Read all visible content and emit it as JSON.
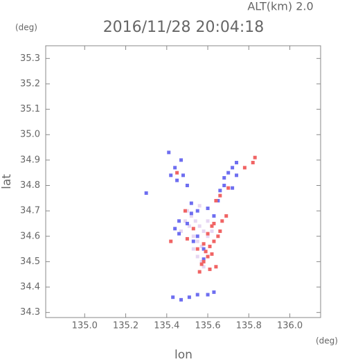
{
  "chart_data": {
    "type": "scatter",
    "title": "2016/11/28 20:04:18",
    "subtitle": "ALT(km) 2.0",
    "y_unit": "(deg)",
    "x_unit": "(deg)",
    "x_label": "lon",
    "y_label": "lat",
    "xlim": [
      134.81,
      136.15
    ],
    "ylim": [
      34.28,
      35.35
    ],
    "xticks": [
      {
        "value": 135,
        "label": "135.0"
      },
      135.2,
      135.4,
      135.6,
      135.8,
      {
        "value": 136,
        "label": "136.0"
      }
    ],
    "yticks": [
      34.3,
      34.4,
      34.5,
      34.6,
      34.7,
      34.8,
      34.9,
      {
        "value": 35,
        "label": "35.0"
      },
      35.1,
      35.2,
      35.3
    ],
    "series": [
      {
        "color": "#e6d6f2",
        "x": [
          135.5,
          135.52,
          135.54,
          135.56,
          135.58,
          135.53,
          135.55,
          135.57,
          135.59,
          135.51,
          135.6,
          135.62,
          135.55,
          135.57,
          135.53,
          135.49,
          135.47,
          135.56,
          135.58,
          135.6
        ],
        "values": [
          34.7,
          34.68,
          34.66,
          34.64,
          34.62,
          34.6,
          34.58,
          34.56,
          34.54,
          34.64,
          34.6,
          34.62,
          34.52,
          34.5,
          34.55,
          34.66,
          34.62,
          34.72,
          34.48,
          34.66
        ]
      },
      {
        "color": "#6e6ef0",
        "x": [
          135.41,
          135.42,
          135.45,
          135.48,
          135.5,
          135.47,
          135.44,
          135.52,
          135.55,
          135.6,
          135.63,
          135.68,
          135.7,
          135.72,
          135.74,
          135.66,
          135.68,
          135.44,
          135.46,
          135.5,
          135.53,
          135.43,
          135.47,
          135.51,
          135.55,
          135.6,
          135.63,
          135.3,
          135.58,
          135.74,
          135.72,
          135.65,
          135.46,
          135.52,
          135.55,
          135.58
        ],
        "values": [
          34.93,
          34.84,
          34.82,
          34.84,
          34.8,
          34.9,
          34.87,
          34.69,
          34.7,
          34.71,
          34.68,
          34.83,
          34.85,
          34.87,
          34.84,
          34.78,
          34.8,
          34.63,
          34.61,
          34.65,
          34.58,
          34.36,
          34.35,
          34.36,
          34.37,
          34.37,
          34.38,
          34.77,
          34.55,
          34.89,
          34.79,
          34.74,
          34.66,
          34.73,
          34.6,
          34.51
        ]
      },
      {
        "color": "#f06464",
        "x": [
          135.57,
          135.58,
          135.6,
          135.62,
          135.64,
          135.61,
          135.63,
          135.65,
          135.66,
          135.62,
          135.6,
          135.58,
          135.67,
          135.69,
          135.83,
          135.82,
          135.66,
          135.64,
          135.55,
          135.5,
          135.42,
          135.53,
          135.56,
          135.61,
          135.59,
          135.45,
          135.7,
          135.78,
          135.49,
          135.63
        ],
        "values": [
          34.49,
          34.5,
          34.52,
          34.53,
          34.48,
          34.56,
          34.58,
          34.6,
          34.62,
          34.64,
          34.61,
          34.57,
          34.66,
          34.68,
          34.91,
          34.89,
          34.76,
          34.74,
          34.55,
          34.59,
          34.58,
          34.63,
          34.46,
          34.47,
          34.54,
          34.85,
          34.79,
          34.87,
          34.7,
          34.65
        ]
      }
    ]
  }
}
